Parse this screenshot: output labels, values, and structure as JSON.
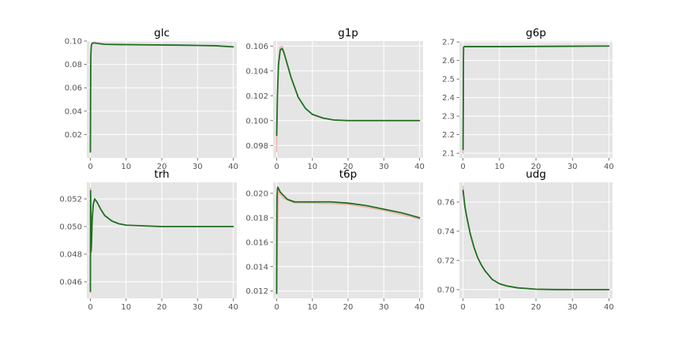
{
  "colors": {
    "panel_bg": "#e5e5e5",
    "grid": "#ffffff",
    "tick_text": "#555555",
    "title_text": "#000000",
    "main_line": "#1f6f1f",
    "spread_line": "#f4a6a0"
  },
  "chart_data": [
    {
      "type": "line",
      "title": "glc",
      "xlim": [
        -1,
        41
      ],
      "ylim": [
        0.0,
        0.1
      ],
      "xticks": [
        0,
        10,
        20,
        30,
        40
      ],
      "xtick_labels": [
        "0",
        "10",
        "20",
        "30",
        "40"
      ],
      "yticks": [
        0.02,
        0.04,
        0.06,
        0.08,
        0.1
      ],
      "ytick_labels": [
        "0.02",
        "0.04",
        "0.06",
        "0.08",
        "0.10"
      ],
      "grid": true,
      "series": [
        {
          "role": "mean",
          "x": [
            0,
            0.05,
            0.1,
            0.2,
            0.3,
            0.5,
            1,
            2,
            4,
            8,
            15,
            25,
            35,
            40
          ],
          "y": [
            0.005,
            0.05,
            0.085,
            0.094,
            0.097,
            0.098,
            0.0985,
            0.098,
            0.0972,
            0.097,
            0.0968,
            0.0965,
            0.096,
            0.095
          ]
        }
      ]
    },
    {
      "type": "line",
      "title": "g1p",
      "xlim": [
        -1,
        41
      ],
      "ylim": [
        0.097,
        0.1064
      ],
      "xticks": [
        0,
        10,
        20,
        30,
        40
      ],
      "xtick_labels": [
        "0",
        "10",
        "20",
        "30",
        "40"
      ],
      "yticks": [
        0.098,
        0.1,
        0.102,
        0.104,
        0.106
      ],
      "ytick_labels": [
        "0.098",
        "0.100",
        "0.102",
        "0.104",
        "0.106"
      ],
      "grid": true,
      "series": [
        {
          "role": "mean",
          "x": [
            0,
            0.2,
            0.5,
            1,
            1.5,
            2,
            3,
            4,
            6,
            8,
            10,
            13,
            16,
            20,
            25,
            30,
            40
          ],
          "y": [
            0.0988,
            0.102,
            0.1045,
            0.1057,
            0.1058,
            0.1055,
            0.1045,
            0.1035,
            0.1019,
            0.101,
            0.1005,
            0.1002,
            0.10005,
            0.1,
            0.1,
            0.1,
            0.1
          ]
        },
        {
          "role": "spread",
          "x": [
            0,
            0.2,
            0.5,
            1,
            1.5,
            2
          ],
          "y": [
            0.0975,
            0.1018,
            0.1047,
            0.1059,
            0.106,
            0.1056
          ]
        }
      ]
    },
    {
      "type": "line",
      "title": "g6p",
      "xlim": [
        -1,
        41
      ],
      "ylim": [
        2.075,
        2.705
      ],
      "xticks": [
        0,
        10,
        20,
        30,
        40
      ],
      "xtick_labels": [
        "0",
        "10",
        "20",
        "30",
        "40"
      ],
      "yticks": [
        2.1,
        2.2,
        2.3,
        2.4,
        2.5,
        2.6,
        2.7
      ],
      "ytick_labels": [
        "2.1",
        "2.2",
        "2.3",
        "2.4",
        "2.5",
        "2.6",
        "2.7"
      ],
      "grid": true,
      "series": [
        {
          "role": "mean",
          "x": [
            0,
            0.05,
            0.1,
            0.15,
            0.3,
            1,
            10,
            20,
            30,
            40
          ],
          "y": [
            2.12,
            2.3,
            2.6,
            2.672,
            2.675,
            2.675,
            2.675,
            2.676,
            2.677,
            2.678
          ]
        },
        {
          "role": "spread",
          "x": [
            0,
            0.05,
            0.1
          ],
          "y": [
            2.1,
            2.25,
            2.55
          ]
        }
      ]
    },
    {
      "type": "line",
      "title": "trh",
      "xlim": [
        -1,
        41
      ],
      "ylim": [
        0.0448,
        0.0532
      ],
      "xticks": [
        0,
        10,
        20,
        30,
        40
      ],
      "xtick_labels": [
        "0",
        "10",
        "20",
        "30",
        "40"
      ],
      "yticks": [
        0.046,
        0.048,
        0.05,
        0.052
      ],
      "ytick_labels": [
        "0.046",
        "0.048",
        "0.050",
        "0.052"
      ],
      "grid": true,
      "series": [
        {
          "role": "mean",
          "x": [
            0,
            0.05,
            0.1,
            0.2,
            0.3,
            0.5,
            0.8,
            1.2,
            1.5,
            2,
            3,
            4,
            6,
            8,
            10,
            15,
            20,
            30,
            40
          ],
          "y": [
            0.0453,
            0.0526,
            0.0512,
            0.0482,
            0.0487,
            0.0505,
            0.0516,
            0.052,
            0.0519,
            0.0517,
            0.0512,
            0.0508,
            0.0504,
            0.0502,
            0.0501,
            0.05005,
            0.05,
            0.05,
            0.05
          ]
        },
        {
          "role": "spread",
          "x": [
            0,
            0.05,
            0.1,
            0.2
          ],
          "y": [
            0.0452,
            0.0528,
            0.051,
            0.048
          ]
        }
      ]
    },
    {
      "type": "line",
      "title": "t6p",
      "xlim": [
        -1,
        41
      ],
      "ylim": [
        0.0114,
        0.0209
      ],
      "xticks": [
        0,
        10,
        20,
        30,
        40
      ],
      "xtick_labels": [
        "0",
        "10",
        "20",
        "30",
        "40"
      ],
      "yticks": [
        0.012,
        0.014,
        0.016,
        0.018,
        0.02
      ],
      "ytick_labels": [
        "0.012",
        "0.014",
        "0.016",
        "0.018",
        "0.020"
      ],
      "grid": true,
      "series": [
        {
          "role": "mean",
          "x": [
            0,
            0.05,
            0.1,
            0.2,
            0.3,
            0.5,
            1,
            2,
            3,
            5,
            10,
            15,
            20,
            25,
            30,
            35,
            40
          ],
          "y": [
            0.0118,
            0.0182,
            0.0198,
            0.0203,
            0.0205,
            0.0204,
            0.0201,
            0.0198,
            0.0195,
            0.0193,
            0.0193,
            0.0193,
            0.0192,
            0.019,
            0.0187,
            0.0184,
            0.018
          ]
        },
        {
          "role": "spread",
          "x": [
            0,
            0.5,
            1,
            2,
            5,
            10,
            20,
            30,
            40
          ],
          "y": [
            0.0121,
            0.0203,
            0.0199,
            0.0196,
            0.0192,
            0.0192,
            0.0191,
            0.0186,
            0.0179
          ]
        }
      ]
    },
    {
      "type": "line",
      "title": "udg",
      "xlim": [
        -1,
        41
      ],
      "ylim": [
        0.694,
        0.7735
      ],
      "xticks": [
        0,
        10,
        20,
        30,
        40
      ],
      "xtick_labels": [
        "0",
        "10",
        "20",
        "30",
        "40"
      ],
      "yticks": [
        0.7,
        0.72,
        0.74,
        0.76
      ],
      "ytick_labels": [
        "0.70",
        "0.72",
        "0.74",
        "0.76"
      ],
      "grid": true,
      "series": [
        {
          "role": "mean",
          "x": [
            0,
            0.5,
            1,
            2,
            3,
            4,
            5,
            6,
            8,
            10,
            12,
            15,
            20,
            25,
            30,
            40
          ],
          "y": [
            0.768,
            0.757,
            0.75,
            0.738,
            0.729,
            0.722,
            0.717,
            0.713,
            0.707,
            0.704,
            0.7025,
            0.7012,
            0.7003,
            0.70005,
            0.7,
            0.7
          ]
        },
        {
          "role": "spread",
          "x": [
            0,
            0.3,
            0.6
          ],
          "y": [
            0.771,
            0.763,
            0.756
          ]
        }
      ]
    }
  ]
}
